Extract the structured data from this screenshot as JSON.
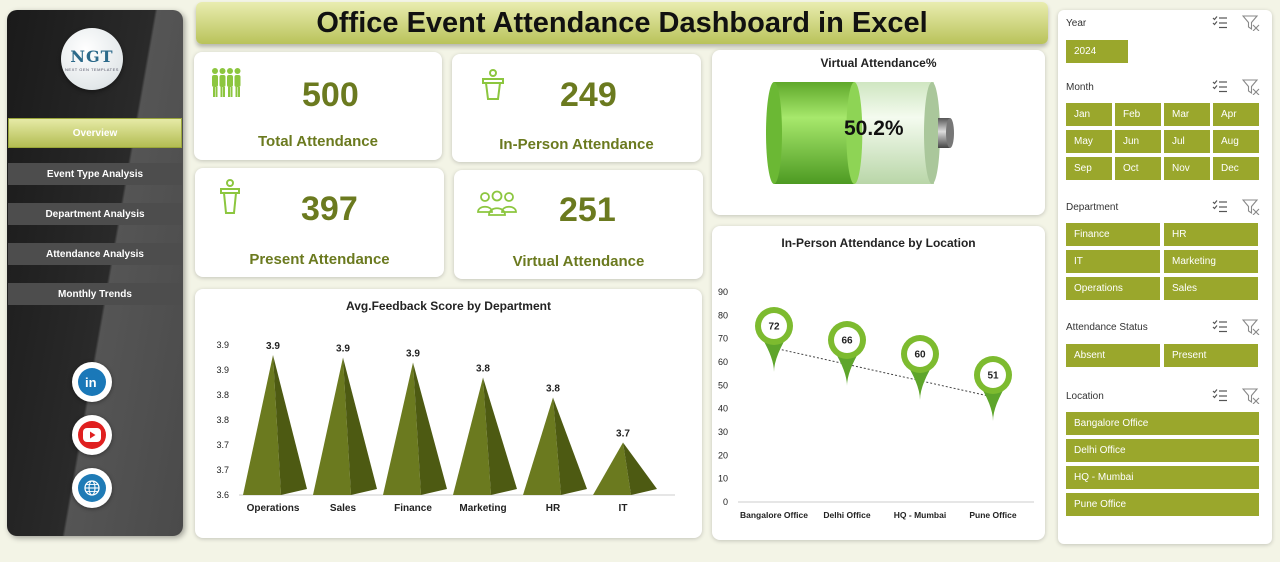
{
  "title": "Office Event Attendance Dashboard in Excel",
  "logo": {
    "text": "NGT",
    "subtext": "NEXT GEN TEMPLATES"
  },
  "nav": [
    {
      "label": "Overview"
    },
    {
      "label": "Event Type Analysis"
    },
    {
      "label": "Department Analysis"
    },
    {
      "label": "Attendance Analysis"
    },
    {
      "label": "Monthly Trends"
    }
  ],
  "social": [
    "linkedin-icon",
    "youtube-icon",
    "website-globe-icon"
  ],
  "kpis": {
    "total": {
      "value": "500",
      "label": "Total Attendance"
    },
    "in_person": {
      "value": "249",
      "label": "In-Person Attendance"
    },
    "present": {
      "value": "397",
      "label": "Present Attendance"
    },
    "virtual": {
      "value": "251",
      "label": "Virtual Attendance"
    }
  },
  "virtual_pct": {
    "title": "Virtual Attendance%",
    "value_label": "50.2%",
    "fill_fraction": 0.502
  },
  "chart_data": [
    {
      "type": "bar",
      "title": "Avg.Feedback Score by Department",
      "categories": [
        "Operations",
        "Sales",
        "Finance",
        "Marketing",
        "HR",
        "IT"
      ],
      "values": [
        3.9,
        3.9,
        3.9,
        3.8,
        3.8,
        3.7
      ],
      "data_labels": [
        "3.9",
        "3.9",
        "3.9",
        "3.8",
        "3.8",
        "3.7"
      ],
      "ylim": [
        3.6,
        3.9
      ],
      "y_ticks": [
        "3.9",
        "3.9",
        "3.8",
        "3.8",
        "3.7",
        "3.7",
        "3.6"
      ],
      "bar_values": [
        3.88,
        3.875,
        3.865,
        3.835,
        3.795,
        3.705
      ],
      "color": "#6b7a1f"
    },
    {
      "type": "scatter",
      "title": "In-Person Attendance by Location",
      "categories": [
        "Bangalore Office",
        "Delhi Office",
        "HQ - Mumbai",
        "Pune Office"
      ],
      "values": [
        72,
        66,
        60,
        51
      ],
      "ylim": [
        0,
        90
      ],
      "y_ticks": [
        0,
        10,
        20,
        30,
        40,
        50,
        60,
        70,
        80,
        90
      ],
      "trendline": true,
      "color": "#7dbb2f"
    }
  ],
  "slicers": {
    "year": {
      "title": "Year",
      "items": [
        "2024"
      ]
    },
    "month": {
      "title": "Month",
      "items": [
        "Jan",
        "Feb",
        "Mar",
        "Apr",
        "May",
        "Jun",
        "Jul",
        "Aug",
        "Sep",
        "Oct",
        "Nov",
        "Dec"
      ]
    },
    "department": {
      "title": "Department",
      "items": [
        "Finance",
        "HR",
        "IT",
        "Marketing",
        "Operations",
        "Sales"
      ]
    },
    "status": {
      "title": "Attendance Status",
      "items": [
        "Absent",
        "Present"
      ]
    },
    "location": {
      "title": "Location",
      "items": [
        "Bangalore Office",
        "Delhi Office",
        "HQ - Mumbai",
        "Pune Office"
      ]
    }
  },
  "colors": {
    "accent": "#9aa72c",
    "dark_green": "#6b7a1f",
    "battery_green": "#7dd13a"
  }
}
